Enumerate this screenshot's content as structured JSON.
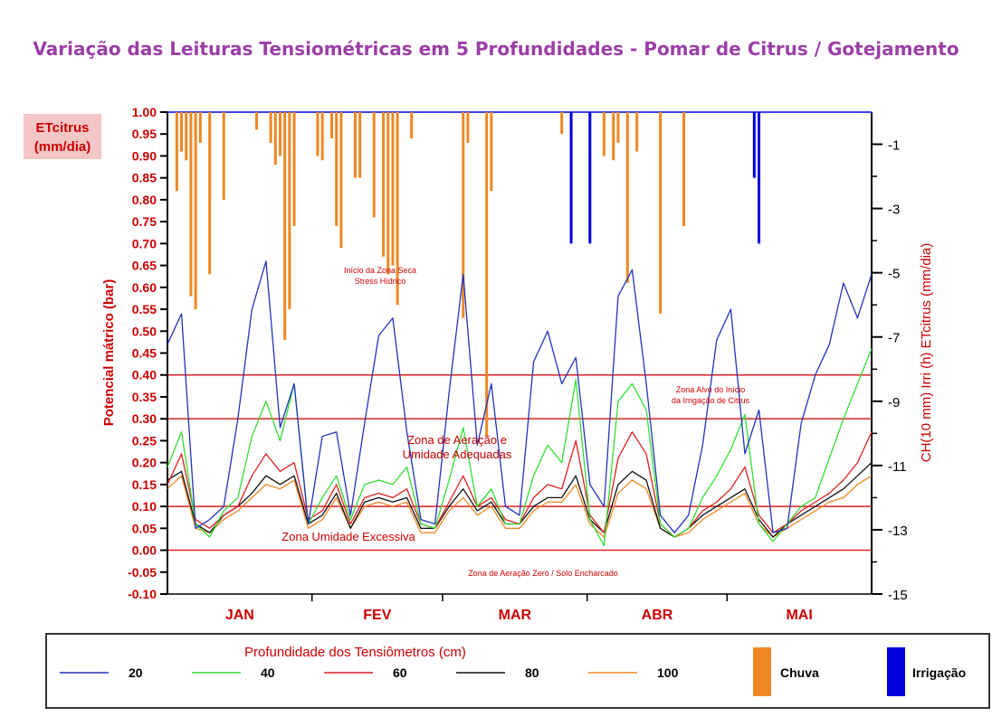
{
  "chart_data": {
    "type": "line",
    "title": "Variação das Leituras Tensiométricas em 5 Profundidades - Pomar de Citrus / Gotejamento",
    "ylabel": "Potencial mátrico (bar)",
    "y2label": "CH(10 mm)  Irri (h)  ETcitrus (mm/dia)",
    "ylim": [
      -0.1,
      1.0
    ],
    "y2lim": [
      -15,
      0
    ],
    "yticks": [
      "1.00",
      "0.95",
      "0.90",
      "0.85",
      "0.80",
      "0.75",
      "0.70",
      "0.65",
      "0.60",
      "0.55",
      "0.50",
      "0.45",
      "0.40",
      "0.35",
      "0.30",
      "0.25",
      "0.20",
      "0.15",
      "0.10",
      "0.05",
      "0.00",
      "-0.05",
      "-0.10"
    ],
    "y2ticks": [
      "-1",
      "-3",
      "-5",
      "-7",
      "-9",
      "-11",
      "-13",
      "-15"
    ],
    "months": [
      "JAN",
      "FEV",
      "MAR",
      "ABR",
      "MAI"
    ],
    "etcitrus_box": [
      "ETcitrus",
      "(mm/dia)"
    ],
    "reference_lines": [
      0.4,
      0.3,
      0.1,
      0.0
    ],
    "annotations": [
      {
        "lines": [
          "Início da Zona Seca",
          "Stress Hídrico"
        ],
        "color": "#cc0000"
      },
      {
        "lines": [
          "Zona Alvo do Início",
          "da Irrigação de Citrus"
        ],
        "color": "#cc0000"
      },
      {
        "lines": [
          "Zona  de  Aeração  e",
          "Umidade Adequadas"
        ],
        "color": "#cc0000"
      },
      {
        "lines": [
          "Zona Umidade Excessiva"
        ],
        "color": "#cc0000"
      },
      {
        "lines": [
          "Zona de Aeração Zero / Solo Encharcado"
        ],
        "color": "#cc0000"
      }
    ],
    "x_days": [
      0,
      3,
      6,
      9,
      12,
      15,
      18,
      21,
      24,
      27,
      30,
      33,
      36,
      39,
      42,
      45,
      48,
      51,
      54,
      57,
      60,
      63,
      66,
      69,
      72,
      75,
      78,
      81,
      84,
      87,
      90,
      93,
      96,
      99,
      102,
      105,
      108,
      111,
      114,
      117,
      120,
      123,
      126,
      129,
      132,
      135,
      138,
      141,
      144,
      147,
      150
    ],
    "series": [
      {
        "name": "20",
        "color": "#2233bb",
        "values": [
          0.47,
          0.54,
          0.05,
          0.07,
          0.1,
          0.3,
          0.55,
          0.66,
          0.28,
          0.38,
          0.06,
          0.26,
          0.27,
          0.08,
          0.29,
          0.49,
          0.53,
          0.27,
          0.07,
          0.06,
          0.36,
          0.63,
          0.24,
          0.38,
          0.1,
          0.08,
          0.43,
          0.5,
          0.38,
          0.44,
          0.15,
          0.1,
          0.58,
          0.64,
          0.38,
          0.08,
          0.04,
          0.08,
          0.24,
          0.48,
          0.55,
          0.22,
          0.32,
          0.04,
          0.05,
          0.29,
          0.4,
          0.47,
          0.61,
          0.53,
          0.63
        ]
      },
      {
        "name": "40",
        "color": "#33dd33",
        "values": [
          0.19,
          0.27,
          0.06,
          0.03,
          0.09,
          0.12,
          0.26,
          0.34,
          0.25,
          0.38,
          0.06,
          0.12,
          0.17,
          0.07,
          0.15,
          0.16,
          0.15,
          0.19,
          0.06,
          0.05,
          0.16,
          0.28,
          0.1,
          0.14,
          0.06,
          0.06,
          0.17,
          0.24,
          0.2,
          0.39,
          0.07,
          0.01,
          0.34,
          0.38,
          0.32,
          0.06,
          0.03,
          0.05,
          0.12,
          0.17,
          0.23,
          0.31,
          0.06,
          0.02,
          0.06,
          0.1,
          0.12,
          0.21,
          0.3,
          0.38,
          0.46
        ]
      },
      {
        "name": "60",
        "color": "#dd2222",
        "values": [
          0.15,
          0.22,
          0.07,
          0.05,
          0.08,
          0.1,
          0.17,
          0.22,
          0.18,
          0.2,
          0.07,
          0.09,
          0.15,
          0.06,
          0.12,
          0.13,
          0.12,
          0.14,
          0.06,
          0.05,
          0.11,
          0.17,
          0.1,
          0.12,
          0.07,
          0.06,
          0.12,
          0.15,
          0.14,
          0.25,
          0.08,
          0.04,
          0.21,
          0.27,
          0.22,
          0.06,
          0.03,
          0.05,
          0.09,
          0.11,
          0.14,
          0.19,
          0.08,
          0.04,
          0.06,
          0.09,
          0.11,
          0.13,
          0.16,
          0.2,
          0.27
        ]
      },
      {
        "name": "80",
        "color": "#111111",
        "values": [
          0.16,
          0.18,
          0.06,
          0.04,
          0.08,
          0.1,
          0.13,
          0.17,
          0.15,
          0.17,
          0.06,
          0.08,
          0.13,
          0.05,
          0.11,
          0.12,
          0.11,
          0.12,
          0.05,
          0.05,
          0.1,
          0.14,
          0.09,
          0.11,
          0.06,
          0.06,
          0.1,
          0.12,
          0.12,
          0.17,
          0.07,
          0.04,
          0.15,
          0.18,
          0.16,
          0.05,
          0.03,
          0.05,
          0.08,
          0.1,
          0.12,
          0.14,
          0.07,
          0.03,
          0.06,
          0.08,
          0.1,
          0.12,
          0.14,
          0.17,
          0.2
        ]
      },
      {
        "name": "100",
        "color": "#ee8822",
        "values": [
          0.14,
          0.17,
          0.05,
          0.04,
          0.07,
          0.09,
          0.12,
          0.15,
          0.14,
          0.16,
          0.05,
          0.07,
          0.12,
          0.05,
          0.1,
          0.11,
          0.1,
          0.11,
          0.04,
          0.04,
          0.09,
          0.12,
          0.08,
          0.1,
          0.05,
          0.05,
          0.09,
          0.11,
          0.11,
          0.15,
          0.06,
          0.03,
          0.13,
          0.16,
          0.14,
          0.05,
          0.03,
          0.04,
          0.07,
          0.09,
          0.11,
          0.13,
          0.06,
          0.03,
          0.05,
          0.07,
          0.09,
          0.11,
          0.12,
          0.15,
          0.17
        ]
      }
    ],
    "chuva": {
      "name": "Chuva",
      "color": "#ee8822",
      "bars": [
        {
          "day": 2,
          "value": 0.82
        },
        {
          "day": 3,
          "value": 0.91
        },
        {
          "day": 4,
          "value": 0.89
        },
        {
          "day": 5,
          "value": 0.58
        },
        {
          "day": 6,
          "value": 0.55
        },
        {
          "day": 7,
          "value": 0.93
        },
        {
          "day": 9,
          "value": 0.63
        },
        {
          "day": 12,
          "value": 0.8
        },
        {
          "day": 19,
          "value": 0.96
        },
        {
          "day": 22,
          "value": 0.93
        },
        {
          "day": 23,
          "value": 0.88
        },
        {
          "day": 24,
          "value": 0.9
        },
        {
          "day": 25,
          "value": 0.48
        },
        {
          "day": 26,
          "value": 0.55
        },
        {
          "day": 27,
          "value": 0.74
        },
        {
          "day": 32,
          "value": 0.9
        },
        {
          "day": 33,
          "value": 0.89
        },
        {
          "day": 35,
          "value": 0.94
        },
        {
          "day": 36,
          "value": 0.74
        },
        {
          "day": 37,
          "value": 0.69
        },
        {
          "day": 40,
          "value": 0.85
        },
        {
          "day": 41,
          "value": 0.85
        },
        {
          "day": 44,
          "value": 0.76
        },
        {
          "day": 46,
          "value": 0.67
        },
        {
          "day": 47,
          "value": 0.63
        },
        {
          "day": 48,
          "value": 0.65
        },
        {
          "day": 49,
          "value": 0.56
        },
        {
          "day": 52,
          "value": 0.94
        },
        {
          "day": 63,
          "value": 0.53
        },
        {
          "day": 64,
          "value": 0.93
        },
        {
          "day": 68,
          "value": 0.26
        },
        {
          "day": 69,
          "value": 0.82
        },
        {
          "day": 84,
          "value": 0.95
        },
        {
          "day": 93,
          "value": 0.9
        },
        {
          "day": 95,
          "value": 0.89
        },
        {
          "day": 96,
          "value": 0.93
        },
        {
          "day": 98,
          "value": 0.61
        },
        {
          "day": 100,
          "value": 0.91
        },
        {
          "day": 105,
          "value": 0.54
        },
        {
          "day": 110,
          "value": 0.74
        },
        {
          "day": 126,
          "value": 0.74
        }
      ]
    },
    "irrigacao": {
      "name": "Irrigação",
      "color": "#0000dd",
      "bars": [
        {
          "day": 86,
          "value": 0.7
        },
        {
          "day": 90,
          "value": 0.7
        },
        {
          "day": 125,
          "value": 0.85
        },
        {
          "day": 126,
          "value": 0.7
        }
      ]
    },
    "legend": {
      "title": "Profundidade dos Tensiômetros  (cm)",
      "items": [
        "20",
        "40",
        "60",
        "80",
        "100"
      ],
      "chuva_label": "Chuva",
      "irrigacao_label": "Irrigação"
    }
  }
}
